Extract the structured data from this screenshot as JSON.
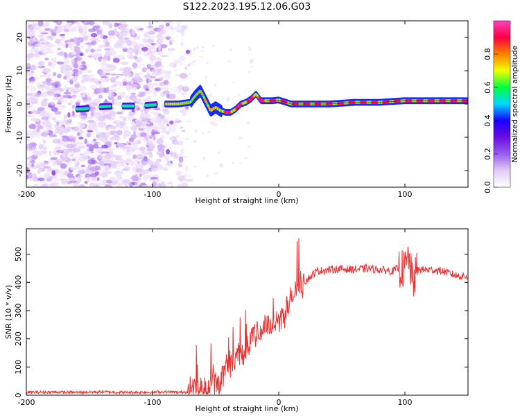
{
  "figure": {
    "title": "S122.2023.195.12.06.G03"
  },
  "chart_data": [
    {
      "type": "heatmap",
      "xlabel": "Height of straight line (km)",
      "ylabel": "Frequency (Hz)",
      "xlim": [
        -200,
        150
      ],
      "ylim": [
        -25,
        25
      ],
      "xticks": [
        -200,
        -100,
        0,
        100
      ],
      "yticks": [
        -20,
        -10,
        0,
        10,
        20
      ],
      "colorbar": {
        "label": "Normalized spectral amplitude",
        "range": [
          0,
          1
        ],
        "ticks": [
          0.0,
          0.2,
          0.4,
          0.6,
          0.8
        ],
        "colormap": [
          "#ffffff",
          "#e3cbf7",
          "#9a5cf0",
          "#6a0de0",
          "#1a00ff",
          "#00d8ff",
          "#00ff40",
          "#f0ff00",
          "#ff8000",
          "#ff0040",
          "#ff40c0"
        ]
      },
      "ridge": {
        "x": [
          -160,
          -155,
          -140,
          -130,
          -120,
          -112,
          -90,
          -80,
          -70,
          -66,
          -62,
          -58,
          -54,
          -50,
          -46,
          -42,
          -38,
          -34,
          -30,
          -26,
          -22,
          -18,
          -14,
          -10,
          -5,
          0,
          10,
          20,
          40,
          60,
          80,
          100,
          120,
          150
        ],
        "freq": [
          -1.5,
          -1.5,
          -0.8,
          -0.6,
          -0.6,
          -0.6,
          0,
          0,
          0.5,
          2.5,
          4,
          1,
          -2,
          -1,
          -2,
          -2.5,
          -2.5,
          -1.5,
          0,
          0.5,
          1.5,
          3,
          1,
          1,
          1,
          1.2,
          0,
          0,
          0,
          0.5,
          0.5,
          1,
          1,
          1
        ]
      },
      "noise_region_xlim": [
        -200,
        -70
      ]
    },
    {
      "type": "line",
      "xlabel": "Height of straight line (km)",
      "ylabel": "SNR (10 * v/v)",
      "xlim": [
        -200,
        150
      ],
      "ylim": [
        0,
        590
      ],
      "xticks": [
        -200,
        -100,
        0,
        100
      ],
      "yticks": [
        0,
        100,
        200,
        300,
        400,
        500
      ],
      "color": "#ee3030",
      "series": [
        {
          "x": [
            -200,
            -180,
            -160,
            -140,
            -120,
            -100,
            -90,
            -80,
            -72,
            -68,
            -64,
            -60,
            -56,
            -52,
            -48,
            -44,
            -40,
            -36,
            -32,
            -28,
            -24,
            -20,
            -16,
            -12,
            -8,
            -4,
            0,
            5,
            10,
            15,
            20,
            25,
            30,
            40,
            50,
            60,
            70,
            80,
            90,
            95,
            100,
            103,
            106,
            110,
            120,
            130,
            140,
            150
          ],
          "values": [
            10,
            11,
            10,
            12,
            10,
            11,
            12,
            10,
            12,
            25,
            40,
            15,
            30,
            60,
            45,
            80,
            110,
            130,
            140,
            160,
            190,
            210,
            220,
            240,
            250,
            255,
            260,
            300,
            340,
            380,
            400,
            420,
            440,
            445,
            448,
            445,
            450,
            445,
            440,
            450,
            445,
            490,
            400,
            445,
            445,
            440,
            425,
            420
          ]
        }
      ]
    }
  ]
}
